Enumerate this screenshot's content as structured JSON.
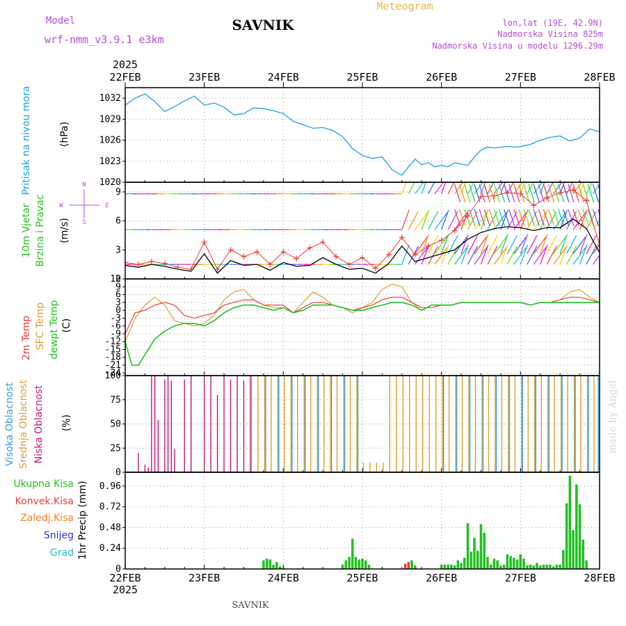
{
  "header": {
    "model_label": "Model",
    "model_name": "wrf-nmm_v3.9.1  e3km",
    "station": "SAVNIK",
    "product": "Meteogram",
    "lonlat": "lon,lat (19E, 42.9N)",
    "elevation": "Nadmorska Visina 825m",
    "model_elevation": "Nadmorska Visina u modelu 1296.29m"
  },
  "footer": {
    "station": "SAVNIK",
    "credit": "made by Angel"
  },
  "time_axis": {
    "year": "2025",
    "ticks": [
      "22FEB",
      "23FEB",
      "24FEB",
      "25FEB",
      "26FEB",
      "27FEB",
      "28FEB"
    ],
    "range_hours": [
      0,
      144
    ]
  },
  "colors": {
    "pressure": "#1aa0e0",
    "temp_2m": "#e83c3c",
    "temp_sfc": "#d9a030",
    "dewpoint": "#22c022",
    "wind_speed": "#000000",
    "gust_marker": "#e83c3c",
    "high_cloud": "#3a9ae0",
    "mid_cloud": "#d9a030",
    "low_cloud": "#c0157a",
    "total_precip": "#22c022",
    "conv_precip": "#e83c3c",
    "frozen_precip": "#ff7a22",
    "snow": "#3030e0",
    "hail": "#20c0c0"
  },
  "chart_data": [
    {
      "type": "line",
      "panel": "pressure",
      "ylabels": [
        "Pritisak na nivou mora",
        "(hPa)"
      ],
      "yticks": [
        1020,
        1023,
        1026,
        1029,
        1032
      ],
      "ylim": [
        1020,
        1033.5
      ],
      "grid": true,
      "series": [
        {
          "x": [
            0,
            3,
            6,
            9,
            12,
            15,
            18,
            21,
            24,
            27,
            30,
            33,
            36,
            39,
            42,
            45,
            48,
            51,
            54,
            57,
            60,
            63,
            66,
            69,
            72,
            75,
            78,
            81,
            84,
            86,
            88,
            90,
            92,
            94,
            96,
            98,
            100,
            102,
            104,
            106,
            108,
            110,
            112,
            114,
            116,
            118,
            120,
            123,
            126,
            129,
            132,
            135,
            138,
            141,
            144
          ],
          "values": [
            1031,
            1032,
            1032.6,
            1031.5,
            1030.1,
            1030.8,
            1031.6,
            1032.3,
            1031,
            1031.3,
            1030.7,
            1029.6,
            1029.8,
            1030.6,
            1030.5,
            1030.2,
            1029.8,
            1028.7,
            1028.2,
            1027.7,
            1027.8,
            1027.4,
            1026.5,
            1024.8,
            1023.8,
            1023.4,
            1023.6,
            1021.8,
            1021,
            1022.2,
            1023.3,
            1022.5,
            1022.8,
            1022.2,
            1022.4,
            1022.2,
            1022.8,
            1022.6,
            1022.4,
            1023.6,
            1024.6,
            1025,
            1024.9,
            1025,
            1025.1,
            1025,
            1025.1,
            1025.4,
            1026,
            1026.4,
            1026.6,
            1025.9,
            1026.3,
            1027.6,
            1027.2
          ]
        }
      ]
    },
    {
      "type": "line",
      "panel": "wind",
      "ylabels": [
        "10m Vjetar",
        "Brzina i Pravac",
        "(m/s)"
      ],
      "direction_key": {
        "n": "N",
        "s": "S",
        "w": "W",
        "e": "E"
      },
      "yticks": [
        0,
        3,
        6,
        9
      ],
      "ylim": [
        0,
        10
      ],
      "grid": true,
      "series": [
        {
          "name": "speed",
          "x": [
            0,
            4,
            8,
            12,
            16,
            20,
            24,
            28,
            32,
            36,
            40,
            44,
            48,
            52,
            56,
            60,
            64,
            68,
            72,
            76,
            80,
            84,
            88,
            92,
            96,
            100,
            104,
            108,
            112,
            116,
            120,
            124,
            128,
            132,
            136,
            140,
            144
          ],
          "values": [
            1.4,
            1.2,
            1.5,
            1.3,
            1.0,
            0.8,
            2.6,
            0.6,
            1.9,
            1.4,
            1.5,
            0.9,
            1.7,
            1.3,
            1.4,
            2.2,
            1.5,
            1.0,
            1.1,
            0.6,
            1.6,
            3.4,
            1.8,
            2.2,
            2.6,
            3.0,
            4.1,
            4.8,
            5.2,
            5.4,
            5.3,
            5.0,
            5.3,
            5.3,
            6.2,
            5.2,
            2.7
          ]
        },
        {
          "name": "gust",
          "x": [
            0,
            4,
            8,
            12,
            16,
            20,
            24,
            28,
            32,
            36,
            40,
            44,
            48,
            52,
            56,
            60,
            64,
            68,
            72,
            76,
            80,
            84,
            88,
            92,
            96,
            100,
            104,
            108,
            112,
            116,
            120,
            124,
            128,
            132,
            136,
            140,
            144
          ],
          "values": [
            1.7,
            1.5,
            1.8,
            1.6,
            1.2,
            1.0,
            3.8,
            1.0,
            3.0,
            2.3,
            2.8,
            1.5,
            2.8,
            2.1,
            3.2,
            3.8,
            2.3,
            1.5,
            2.2,
            1.1,
            2.5,
            4.3,
            2.5,
            3.4,
            4.0,
            5.0,
            6.5,
            8.5,
            8.6,
            8.9,
            8.8,
            7.6,
            8.4,
            8.9,
            9.2,
            8.1,
            3.5
          ]
        }
      ]
    },
    {
      "type": "line",
      "panel": "temperature",
      "ylabels": [
        "2m Temp",
        "SFC Temp",
        "dewpt Temp",
        "(C)"
      ],
      "yticks": [
        -24,
        -21,
        -18,
        -15,
        -12,
        -9,
        -6,
        -3,
        0,
        3,
        6,
        9,
        12
      ],
      "ylim": [
        -25,
        12
      ],
      "grid": true,
      "series": [
        {
          "name": "2m Temp",
          "x": [
            0,
            3,
            6,
            9,
            12,
            15,
            18,
            21,
            24,
            27,
            30,
            33,
            36,
            39,
            42,
            45,
            48,
            51,
            54,
            57,
            60,
            63,
            66,
            69,
            72,
            75,
            78,
            81,
            84,
            87,
            90,
            93,
            96,
            99,
            102,
            105,
            108,
            111,
            114,
            117,
            120,
            123,
            126,
            129,
            132,
            135,
            138,
            141,
            144
          ],
          "values": [
            -9,
            -1,
            0,
            2,
            3,
            2,
            -2,
            -3,
            -2,
            -1,
            2,
            3,
            4,
            4,
            2,
            2,
            2,
            -1,
            1,
            3,
            3,
            2,
            1,
            0,
            1,
            2,
            4,
            5,
            5,
            3,
            1,
            1,
            2,
            2,
            3,
            3,
            3,
            3,
            3,
            3,
            3,
            2,
            3,
            3,
            4,
            5,
            5,
            4,
            3
          ]
        },
        {
          "name": "SFC Temp",
          "x": [
            0,
            3,
            6,
            9,
            12,
            15,
            18,
            21,
            24,
            27,
            30,
            33,
            36,
            39,
            42,
            45,
            48,
            51,
            54,
            57,
            60,
            63,
            66,
            69,
            72,
            75,
            78,
            81,
            84,
            87,
            90,
            93,
            96,
            99,
            102,
            105,
            108,
            111,
            114,
            117,
            120,
            123,
            126,
            129,
            132,
            135,
            138,
            141,
            144
          ],
          "values": [
            -12,
            -3,
            2,
            5,
            2,
            -4,
            -5,
            -6,
            -5,
            -2,
            4,
            7,
            8,
            4,
            2,
            1,
            1,
            -1,
            3,
            7,
            5,
            2,
            1,
            -1,
            1,
            3,
            8,
            10,
            9,
            3,
            0,
            2,
            2,
            2,
            3,
            3,
            3,
            3,
            3,
            3,
            3,
            2,
            3,
            3,
            4,
            7,
            8,
            5,
            3
          ]
        },
        {
          "name": "dewpt Temp",
          "x": [
            0,
            2,
            4,
            6,
            9,
            12,
            15,
            18,
            21,
            24,
            27,
            30,
            33,
            36,
            39,
            42,
            45,
            48,
            51,
            54,
            57,
            60,
            63,
            66,
            69,
            72,
            75,
            78,
            81,
            84,
            87,
            90,
            93,
            96,
            99,
            102,
            105,
            108,
            111,
            114,
            117,
            120,
            123,
            126,
            129,
            132,
            135,
            138,
            141,
            144
          ],
          "values": [
            -12,
            -21,
            -21,
            -17,
            -11,
            -8,
            -6,
            -5,
            -5,
            -6,
            -4,
            -1,
            1,
            2,
            2,
            1,
            0,
            1,
            -1,
            0,
            2,
            2,
            2,
            1,
            0,
            0,
            1,
            2,
            3,
            3,
            2,
            0,
            2,
            2,
            2,
            3,
            3,
            3,
            3,
            3,
            3,
            3,
            2,
            3,
            3,
            3,
            3,
            3,
            3,
            3
          ]
        }
      ]
    },
    {
      "type": "bar",
      "panel": "cloud",
      "ylabels": [
        "Visoka Oblacnost",
        "Srednja Oblacnost",
        "Niska Oblacnost",
        "(%)"
      ],
      "yticks": [
        0,
        25,
        50,
        75,
        100
      ],
      "ylim": [
        0,
        100
      ],
      "grid": true,
      "series": [
        {
          "name": "Niska Oblacnost",
          "x": [
            4,
            6,
            7,
            8,
            9,
            10,
            12,
            13,
            14,
            15,
            18,
            20,
            24,
            26,
            28,
            30,
            32,
            34,
            36,
            38
          ],
          "values": [
            20,
            8,
            5,
            100,
            100,
            54,
            96,
            100,
            95,
            24,
            96,
            100,
            100,
            100,
            80,
            100,
            96,
            100,
            95,
            100
          ]
        },
        {
          "name": "Srednja Oblacnost",
          "x": [
            38,
            40,
            42,
            44,
            46,
            48,
            50,
            52,
            54,
            56,
            58,
            60,
            62,
            64,
            66,
            68,
            70,
            72,
            74,
            76,
            78,
            80,
            82,
            84,
            86,
            88,
            90,
            92,
            94,
            96,
            98,
            100,
            102,
            104,
            106,
            108,
            110,
            112,
            114,
            116,
            118,
            120,
            122,
            124,
            126,
            128,
            130,
            132,
            134,
            136,
            138,
            140,
            142
          ],
          "values": [
            100,
            100,
            100,
            100,
            100,
            100,
            100,
            100,
            100,
            100,
            100,
            100,
            100,
            100,
            100,
            100,
            100,
            10,
            10,
            10,
            10,
            100,
            100,
            100,
            100,
            100,
            100,
            100,
            100,
            100,
            100,
            100,
            100,
            100,
            100,
            100,
            100,
            100,
            100,
            100,
            100,
            100,
            100,
            100,
            100,
            100,
            100,
            100,
            100,
            100,
            100,
            100,
            100
          ]
        },
        {
          "name": "Visoka Oblacnost",
          "x": [
            42,
            46,
            50,
            54,
            58,
            62,
            66,
            70,
            96,
            100,
            104,
            108,
            112,
            116,
            120,
            124,
            128,
            132,
            136,
            140,
            143
          ],
          "values": [
            100,
            100,
            100,
            100,
            100,
            100,
            100,
            100,
            100,
            100,
            100,
            100,
            100,
            100,
            100,
            100,
            100,
            100,
            100,
            100,
            100
          ]
        }
      ]
    },
    {
      "type": "bar",
      "panel": "precip",
      "ylabels": [
        "1hr Precip (mm)"
      ],
      "legend": [
        "Ukupna Kisa",
        "Konvek.Kisa",
        "Zaledj.Kisa",
        "Snijeg",
        "Grad"
      ],
      "yticks": [
        0,
        0.24,
        0.48,
        0.72,
        0.96
      ],
      "ytick_labels": [
        "0",
        "0.24",
        "0.48",
        "0.72",
        "0.96"
      ],
      "ylim": [
        0,
        1.12
      ],
      "grid": true,
      "series": [
        {
          "name": "Ukupna Kisa",
          "x": [
            42,
            43,
            44,
            45,
            46,
            47,
            48,
            66,
            67,
            68,
            69,
            70,
            71,
            72,
            73,
            74,
            86,
            87,
            88,
            96,
            97,
            98,
            99,
            100,
            101,
            102,
            103,
            104,
            105,
            106,
            107,
            108,
            109,
            110,
            111,
            112,
            113,
            114,
            115,
            116,
            117,
            118,
            119,
            120,
            121,
            122,
            123,
            124,
            125,
            126,
            127,
            128,
            129,
            130,
            131,
            132,
            133,
            134,
            135,
            136,
            137,
            138,
            139,
            140
          ],
          "values": [
            0.1,
            0.12,
            0.11,
            0.05,
            0.08,
            0.03,
            0.02,
            0.05,
            0.1,
            0.14,
            0.35,
            0.14,
            0.11,
            0.12,
            0.1,
            0.05,
            0.08,
            0.1,
            0.04,
            0.05,
            0.05,
            0.05,
            0.05,
            0.04,
            0.1,
            0.07,
            0.13,
            0.53,
            0.2,
            0.36,
            0.21,
            0.52,
            0.42,
            0.14,
            0.05,
            0.12,
            0.1,
            0.04,
            0.05,
            0.17,
            0.15,
            0.13,
            0.11,
            0.17,
            0.12,
            0.04,
            0.05,
            0.04,
            0.07,
            0.04,
            0.05,
            0.05,
            0.05,
            0.03,
            0.05,
            0.05,
            0.22,
            0.76,
            1.08,
            0.45,
            0.98,
            0.75,
            0.34,
            0.1
          ]
        },
        {
          "name": "Konvek.Kisa",
          "x": [
            85,
            86
          ],
          "values": [
            0.06,
            0.08
          ]
        }
      ]
    }
  ]
}
